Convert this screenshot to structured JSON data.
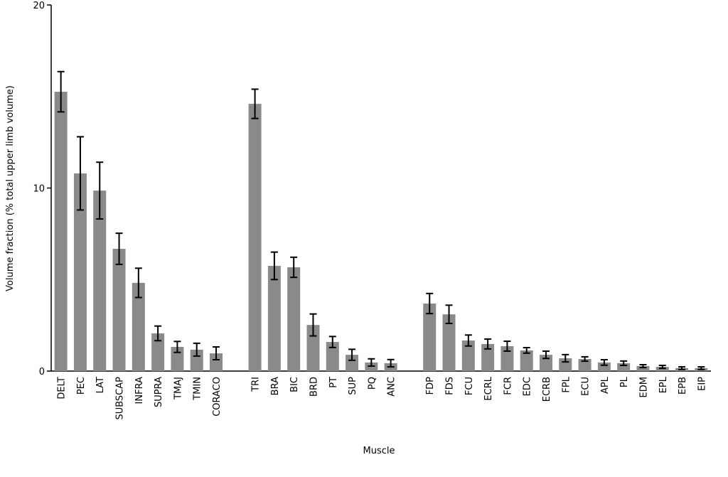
{
  "chart_data": {
    "type": "bar",
    "x_label": "Muscle",
    "y_label": "Volume fraction (% total upper limb volume)",
    "categories": [
      "DELT",
      "PEC",
      "LAT",
      "SUBSCAP",
      "INFRA",
      "SUPRA",
      "TMAJ",
      "TMIN",
      "CORACO",
      null,
      "TRI",
      "BRA",
      "BIC",
      "BRD",
      "PT",
      "SUP",
      "PQ",
      "ANC",
      null,
      "FDP",
      "FDS",
      "FCU",
      "ECRL",
      "FCR",
      "EDC",
      "ECRB",
      "FPL",
      "ECU",
      "APL",
      "PL",
      "EDM",
      "EPL",
      "EPB",
      "EIP"
    ],
    "values": [
      15.26,
      10.8,
      9.86,
      6.68,
      4.82,
      2.06,
      1.32,
      1.17,
      0.97,
      null,
      14.6,
      5.75,
      5.67,
      2.52,
      1.59,
      0.89,
      0.47,
      0.43,
      null,
      3.69,
      3.1,
      1.67,
      1.48,
      1.36,
      1.13,
      0.89,
      0.7,
      0.66,
      0.47,
      0.43,
      0.27,
      0.23,
      0.16,
      0.16
    ],
    "errors": [
      1.1,
      2.0,
      1.55,
      0.85,
      0.8,
      0.4,
      0.3,
      0.35,
      0.35,
      null,
      0.8,
      0.75,
      0.55,
      0.6,
      0.3,
      0.3,
      0.2,
      0.2,
      null,
      0.55,
      0.5,
      0.3,
      0.27,
      0.27,
      0.15,
      0.2,
      0.2,
      0.12,
      0.15,
      0.12,
      0.08,
      0.08,
      0.07,
      0.07
    ],
    "color": "#8a8a8a",
    "ylim": [
      0,
      20
    ],
    "yticks": [
      0,
      10,
      20
    ],
    "grid": false
  }
}
